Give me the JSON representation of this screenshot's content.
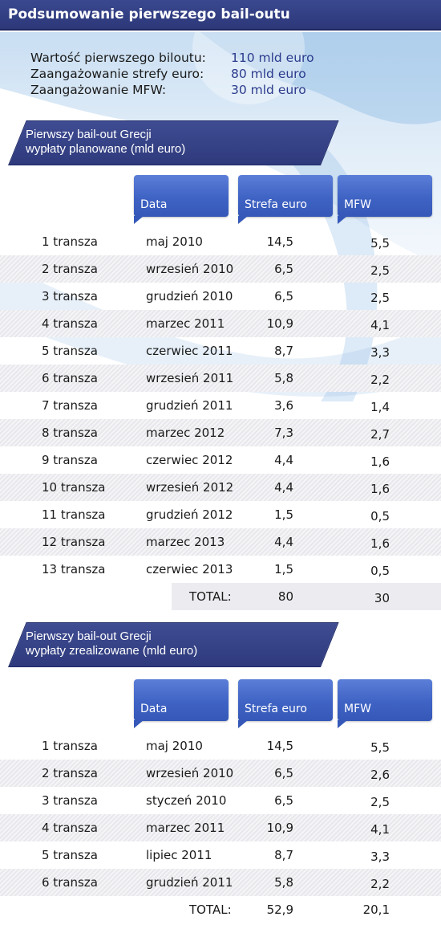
{
  "title": "Podsumowanie pierwszego bail-outu",
  "summary": [
    {
      "label": "Wartość pierwszego biloutu:",
      "value": "110 mld euro"
    },
    {
      "label": "Zaangażowanie strefy euro:",
      "value": "80 mld euro"
    },
    {
      "label": "Zaangażowanie MFW:",
      "value": "30 mld euro"
    }
  ],
  "columns": {
    "date": "Data",
    "eurozone": "Strefa euro",
    "imf": "MFW"
  },
  "planned": {
    "title_line1": "Pierwszy bail-out Grecji",
    "title_line2": "wypłaty planowane (mld euro)",
    "rows": [
      {
        "tranche": "1 transza",
        "date": "maj 2010",
        "eurozone": "14,5",
        "imf": "5,5"
      },
      {
        "tranche": "2 transza",
        "date": "wrzesień 2010",
        "eurozone": "6,5",
        "imf": "2,5"
      },
      {
        "tranche": "3 transza",
        "date": "grudzień 2010",
        "eurozone": "6,5",
        "imf": "2,5"
      },
      {
        "tranche": "4 transza",
        "date": "marzec 2011",
        "eurozone": "10,9",
        "imf": "4,1"
      },
      {
        "tranche": "5 transza",
        "date": "czerwiec 2011",
        "eurozone": "8,7",
        "imf": "3,3"
      },
      {
        "tranche": "6 transza",
        "date": "wrzesień 2011",
        "eurozone": "5,8",
        "imf": "2,2"
      },
      {
        "tranche": "7 transza",
        "date": "grudzień 2011",
        "eurozone": "3,6",
        "imf": "1,4"
      },
      {
        "tranche": "8 transza",
        "date": "marzec 2012",
        "eurozone": "7,3",
        "imf": "2,7"
      },
      {
        "tranche": "9 transza",
        "date": "czerwiec 2012",
        "eurozone": "4,4",
        "imf": "1,6"
      },
      {
        "tranche": "10 transza",
        "date": "wrzesień 2012",
        "eurozone": "4,4",
        "imf": "1,6"
      },
      {
        "tranche": "11 transza",
        "date": "grudzień 2012",
        "eurozone": "1,5",
        "imf": "0,5"
      },
      {
        "tranche": "12 transza",
        "date": "marzec 2013",
        "eurozone": "4,4",
        "imf": "1,6"
      },
      {
        "tranche": "13 transza",
        "date": "czerwiec 2013",
        "eurozone": "1,5",
        "imf": "0,5"
      }
    ],
    "total_label": "TOTAL:",
    "total_eurozone": "80",
    "total_imf": "30"
  },
  "realized": {
    "title_line1": "Pierwszy bail-out Grecji",
    "title_line2": "wypłaty zrealizowane (mld euro)",
    "rows": [
      {
        "tranche": "1 transza",
        "date": "maj 2010",
        "eurozone": "14,5",
        "imf": "5,5"
      },
      {
        "tranche": "2 transza",
        "date": "wrzesień 2010",
        "eurozone": "6,5",
        "imf": "2,6"
      },
      {
        "tranche": "3 transza",
        "date": "styczeń 2010",
        "eurozone": "6,5",
        "imf": "2,5"
      },
      {
        "tranche": "4 transza",
        "date": "marzec 2011",
        "eurozone": "10,9",
        "imf": "4,1"
      },
      {
        "tranche": "5 transza",
        "date": "lipiec 2011",
        "eurozone": "8,7",
        "imf": "3,3"
      },
      {
        "tranche": "6 transza",
        "date": "grudzień 2011",
        "eurozone": "5,8",
        "imf": "2,2"
      }
    ],
    "total_label": "TOTAL:",
    "total_eurozone": "52,9",
    "total_imf": "20,1"
  }
}
